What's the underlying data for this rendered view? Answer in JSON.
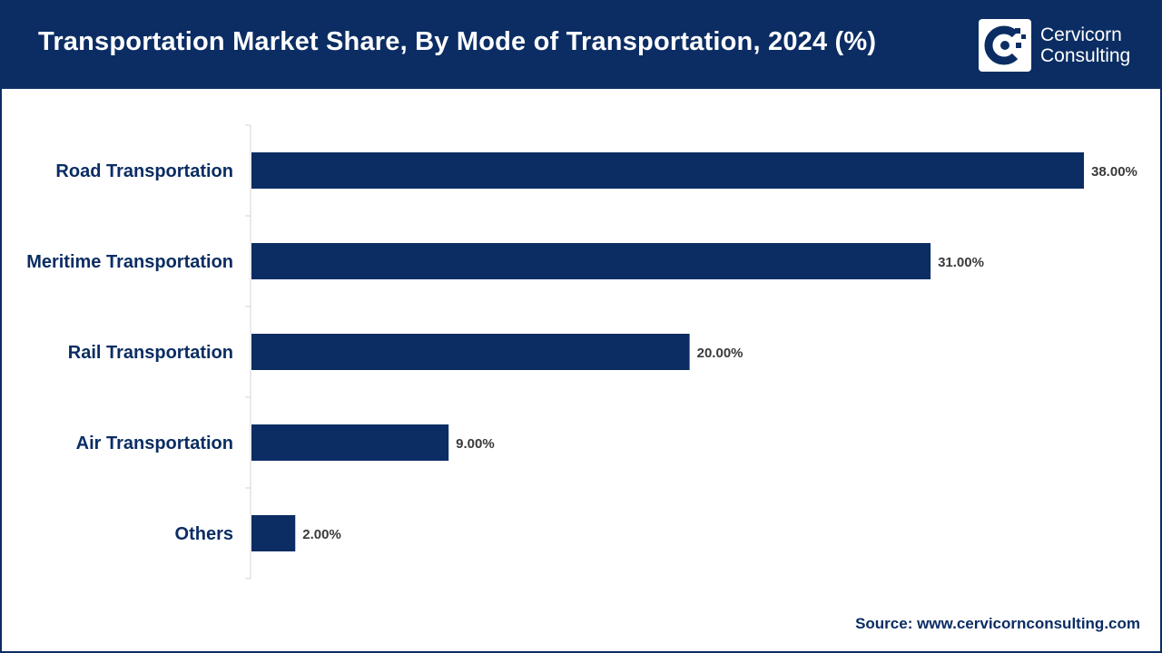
{
  "header": {
    "title": "Transportation Market Share, By Mode of Transportation, 2024 (%)",
    "logo_line1": "Cervicorn",
    "logo_line2": "Consulting"
  },
  "colors": {
    "brand": "#0b2d63",
    "bar": "#0b2d63",
    "value_text": "#3a3a3a"
  },
  "chart_data": {
    "type": "bar",
    "orientation": "horizontal",
    "title": "Transportation Market Share, By Mode of Transportation, 2024 (%)",
    "categories": [
      "Road Transportation",
      "Meritime Transportation",
      "Rail Transportation",
      "Air Transportation",
      "Others"
    ],
    "values": [
      38.0,
      31.0,
      20.0,
      9.0,
      2.0
    ],
    "value_labels": [
      "38.00%",
      "31.00%",
      "20.00%",
      "9.00%",
      "2.00%"
    ],
    "xlim": [
      0,
      40
    ],
    "xlabel": "",
    "ylabel": "",
    "grid": false,
    "legend": "none"
  },
  "footer": {
    "source": "Source: www.cervicornconsulting.com"
  }
}
